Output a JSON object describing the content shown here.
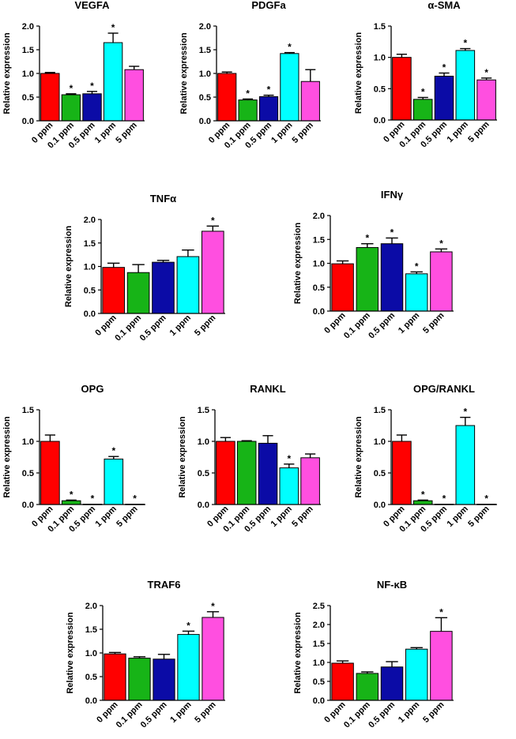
{
  "colors": [
    "#ff0000",
    "#17b417",
    "#0b0ba6",
    "#00ffff",
    "#ff4fe0"
  ],
  "chart_data": [
    {
      "type": "bar",
      "title": "VEGFA",
      "ylabel": "Relative expression",
      "categories": [
        "0 ppm",
        "0.1 ppm",
        "0.5 ppm",
        "1 ppm",
        "5 ppm"
      ],
      "values": [
        1.0,
        0.55,
        0.57,
        1.65,
        1.08
      ],
      "errors": [
        0.02,
        0.02,
        0.05,
        0.2,
        0.07
      ],
      "significance": [
        "",
        "*",
        "*",
        "*",
        ""
      ],
      "ylim": [
        0,
        2.0
      ],
      "yticks": [
        "0.0",
        "0.5",
        "1.0",
        "1.5",
        "2.0"
      ]
    },
    {
      "type": "bar",
      "title": "PDGFa",
      "ylabel": "Relative expression",
      "categories": [
        "0 ppm",
        "0.1 ppm",
        "0.5 ppm",
        "1 ppm",
        "5 ppm"
      ],
      "values": [
        1.0,
        0.44,
        0.51,
        1.42,
        0.83
      ],
      "errors": [
        0.03,
        0.02,
        0.03,
        0.02,
        0.25
      ],
      "significance": [
        "",
        "*",
        "*",
        "*",
        ""
      ],
      "ylim": [
        0,
        2.0
      ],
      "yticks": [
        "0.0",
        "0.5",
        "1.0",
        "1.5",
        "2.0"
      ]
    },
    {
      "type": "bar",
      "title": "α-SMA",
      "ylabel": "Relative expression",
      "categories": [
        "0 ppm",
        "0.1 ppm",
        "0.5 ppm",
        "1 ppm",
        "5 ppm"
      ],
      "values": [
        1.0,
        0.33,
        0.7,
        1.11,
        0.64
      ],
      "errors": [
        0.05,
        0.03,
        0.05,
        0.03,
        0.03
      ],
      "significance": [
        "",
        "*",
        "*",
        "*",
        "*"
      ],
      "ylim": [
        0,
        1.5
      ],
      "yticks": [
        "0.0",
        "0.5",
        "1.0",
        "1.5"
      ]
    },
    {
      "type": "bar",
      "title": "TNFα",
      "ylabel": "Relative expression",
      "categories": [
        "0 ppm",
        "0.1 ppm",
        "0.5 ppm",
        "1 ppm",
        "5 ppm"
      ],
      "values": [
        0.98,
        0.87,
        1.09,
        1.21,
        1.75
      ],
      "errors": [
        0.09,
        0.17,
        0.04,
        0.14,
        0.11
      ],
      "significance": [
        "",
        "",
        "",
        "",
        "*"
      ],
      "ylim": [
        0,
        2.0
      ],
      "yticks": [
        "0.0",
        "0.5",
        "1.0",
        "1.5",
        "2.0"
      ]
    },
    {
      "type": "bar",
      "title": "IFNγ",
      "ylabel": "Relative expression",
      "categories": [
        "0 ppm",
        "0.1 ppm",
        "0.5 ppm",
        "1 ppm",
        "5 ppm"
      ],
      "values": [
        0.99,
        1.33,
        1.41,
        0.78,
        1.24
      ],
      "errors": [
        0.06,
        0.08,
        0.12,
        0.04,
        0.06
      ],
      "significance": [
        "",
        "*",
        "*",
        "*",
        "*"
      ],
      "ylim": [
        0,
        2.0
      ],
      "yticks": [
        "0.0",
        "0.5",
        "1.0",
        "1.5",
        "2.0"
      ]
    },
    {
      "type": "bar",
      "title": "OPG",
      "ylabel": "Relative expression",
      "categories": [
        "0 ppm",
        "0.1 ppm",
        "0.5 ppm",
        "1 ppm",
        "5 ppm"
      ],
      "values": [
        1.0,
        0.06,
        0.005,
        0.72,
        0.005
      ],
      "errors": [
        0.1,
        0.01,
        0.0,
        0.04,
        0.0
      ],
      "significance": [
        "",
        "*",
        "*",
        "*",
        "*"
      ],
      "ylim": [
        0,
        1.5
      ],
      "yticks": [
        "0.0",
        "0.5",
        "1.0",
        "1.5"
      ]
    },
    {
      "type": "bar",
      "title": "RANKL",
      "ylabel": "Relative expression",
      "categories": [
        "0 ppm",
        "0.1 ppm",
        "0.5 ppm",
        "1 ppm",
        "5 ppm"
      ],
      "values": [
        1.0,
        1.0,
        0.97,
        0.58,
        0.74
      ],
      "errors": [
        0.06,
        0.01,
        0.12,
        0.06,
        0.06
      ],
      "significance": [
        "",
        "",
        "",
        "*",
        ""
      ],
      "ylim": [
        0,
        1.5
      ],
      "yticks": [
        "0.0",
        "0.5",
        "1.0",
        "1.5"
      ]
    },
    {
      "type": "bar",
      "title": "OPG/RANKL",
      "ylabel": "Relative expression",
      "categories": [
        "0 ppm",
        "0.1 ppm",
        "0.5 ppm",
        "1 ppm",
        "5 ppm"
      ],
      "values": [
        1.0,
        0.06,
        0.005,
        1.25,
        0.005
      ],
      "errors": [
        0.1,
        0.01,
        0.0,
        0.13,
        0.0
      ],
      "significance": [
        "",
        "*",
        "*",
        "*",
        "*"
      ],
      "ylim": [
        0,
        1.5
      ],
      "yticks": [
        "0.0",
        "0.5",
        "1.0",
        "1.5"
      ]
    },
    {
      "type": "bar",
      "title": "TRAF6",
      "ylabel": "Relative expression",
      "categories": [
        "0 ppm",
        "0.1 ppm",
        "0.5 ppm",
        "1 ppm",
        "5 ppm"
      ],
      "values": [
        0.98,
        0.89,
        0.87,
        1.39,
        1.75
      ],
      "errors": [
        0.03,
        0.03,
        0.1,
        0.07,
        0.12
      ],
      "significance": [
        "",
        "",
        "",
        "*",
        "*"
      ],
      "ylim": [
        0,
        2.0
      ],
      "yticks": [
        "0.0",
        "0.5",
        "1.0",
        "1.5",
        "2.0"
      ]
    },
    {
      "type": "bar",
      "title": "NF-κB",
      "ylabel": "Relative expression",
      "categories": [
        "0 ppm",
        "0.1 ppm",
        "0.5 ppm",
        "1 ppm",
        "5 ppm"
      ],
      "values": [
        0.98,
        0.71,
        0.88,
        1.35,
        1.82
      ],
      "errors": [
        0.06,
        0.04,
        0.14,
        0.04,
        0.36
      ],
      "significance": [
        "",
        "",
        "",
        "",
        "*"
      ],
      "ylim": [
        0,
        2.5
      ],
      "yticks": [
        "0.0",
        "0.5",
        "1.0",
        "1.5",
        "2.0",
        "2.5"
      ]
    }
  ]
}
